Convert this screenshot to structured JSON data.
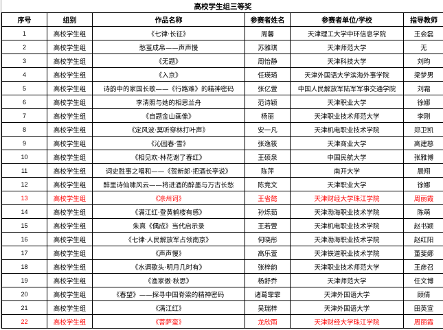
{
  "title": "高校学生组三等奖",
  "headers": [
    "序号",
    "组别",
    "作品名称",
    "参赛者姓名",
    "参赛者单位/学校",
    "指导教师"
  ],
  "highlight_color": "#ff0000",
  "rows": [
    {
      "no": "1",
      "group": "高校学生组",
      "work": "《七律·长征》",
      "name": "周馨",
      "school": "天津理工大学中环信息学院",
      "teacher": "王会磊",
      "highlight": false
    },
    {
      "no": "2",
      "group": "高校学生组",
      "work": "愁茧成帛——声声慢",
      "name": "苏雅琪",
      "school": "天津师范大学",
      "teacher": "无",
      "highlight": false
    },
    {
      "no": "3",
      "group": "高校学生组",
      "work": "《无题》",
      "name": "周怡静",
      "school": "天津科技大学",
      "teacher": "刘昀",
      "highlight": false
    },
    {
      "no": "4",
      "group": "高校学生组",
      "work": "《入京》",
      "name": "任瑛琦",
      "school": "天津外国语大学滨海外事学院",
      "teacher": "梁梦男",
      "highlight": false
    },
    {
      "no": "5",
      "group": "高校学生组",
      "work": "诗韵中的家国长歌——《行路难》的精神密码",
      "name": "张亿萱",
      "school": "中国人民解放军陆军军事交通学院",
      "teacher": "刘霜",
      "highlight": false
    },
    {
      "no": "6",
      "group": "高校学生组",
      "work": "李清照与她的相思兰舟",
      "name": "范诗颖",
      "school": "天津职业大学",
      "teacher": "徐娜",
      "highlight": false
    },
    {
      "no": "7",
      "group": "高校学生组",
      "work": "《自题金山画像》",
      "name": "杨丽",
      "school": "天津职业技术师范大学",
      "teacher": "李刚",
      "highlight": false
    },
    {
      "no": "8",
      "group": "高校学生组",
      "work": "《定风波·莫听穿林打叶声》",
      "name": "安一凡",
      "school": "天津机电职业技术学院",
      "teacher": "郑卫凯",
      "highlight": false
    },
    {
      "no": "9",
      "group": "高校学生组",
      "work": "《沁园春·雪》",
      "name": "张逸筱",
      "school": "天津商业大学",
      "teacher": "高建慈",
      "highlight": false
    },
    {
      "no": "10",
      "group": "高校学生组",
      "work": "《相见欢·林花谢了春红》",
      "name": "王硕泉",
      "school": "中国民航大学",
      "teacher": "张雅博",
      "highlight": false
    },
    {
      "no": "11",
      "group": "高校学生组",
      "work": "词史胜事之唱和——《贺新郎·把酒长亭说》",
      "name": "陈萍",
      "school": "南开大学",
      "teacher": "晨翔",
      "highlight": false
    },
    {
      "no": "12",
      "group": "高校学生组",
      "work": "醉里诗仙啸风云——将进酒的醉墨与万古长愁",
      "name": "陈竞文",
      "school": "天津职业大学",
      "teacher": "徐娜",
      "highlight": false
    },
    {
      "no": "13",
      "group": "高校学生组",
      "work": "《凉州词》",
      "name": "王省懿",
      "school": "天津财经大学珠江学院",
      "teacher": "周丽霞",
      "highlight": true
    },
    {
      "no": "14",
      "group": "高校学生组",
      "work": "《满江红·登黄鹤楼有感》",
      "name": "孙烁茹",
      "school": "天津渤海职业技术学院",
      "teacher": "陈萌",
      "highlight": false
    },
    {
      "no": "15",
      "group": "高校学生组",
      "work": "朱熹《偶成》当代启示录",
      "name": "王若萱",
      "school": "天津机电职业技术学院",
      "teacher": "赵书颖",
      "highlight": false
    },
    {
      "no": "16",
      "group": "高校学生组",
      "work": "《七律·人民解放军占领南京》",
      "name": "何晓彤",
      "school": "天津渤海职业技术学院",
      "teacher": "赵红阳",
      "highlight": false
    },
    {
      "no": "17",
      "group": "高校学生组",
      "work": "《声声慢》",
      "name": "高乐萱",
      "school": "天津铁道职业技术学院",
      "teacher": "董斐娜",
      "highlight": false
    },
    {
      "no": "18",
      "group": "高校学生组",
      "work": "《水调歌头·明月几时有》",
      "name": "张梓韵",
      "school": "天津职业技术师范大学",
      "teacher": "王彦召",
      "highlight": false
    },
    {
      "no": "19",
      "group": "高校学生组",
      "work": "《渔家傲·秋思》",
      "name": "杨舒乔",
      "school": "天津师范大学",
      "teacher": "任文博",
      "highlight": false
    },
    {
      "no": "20",
      "group": "高校学生组",
      "work": "《春望》——探寻中国脊梁的精神密码",
      "name": "诸葛霏霏",
      "school": "天津外国语大学",
      "teacher": "顾倩",
      "highlight": false
    },
    {
      "no": "21",
      "group": "高校学生组",
      "work": "《满江红》",
      "name": "吴瑞梓",
      "school": "天津外国语大学",
      "teacher": "田英宣",
      "highlight": false
    },
    {
      "no": "22",
      "group": "高校学生组",
      "work": "《菩萨蛮》",
      "name": "龙欣雨",
      "school": "天津财经大学珠江学院",
      "teacher": "周丽霞",
      "highlight": true
    }
  ]
}
